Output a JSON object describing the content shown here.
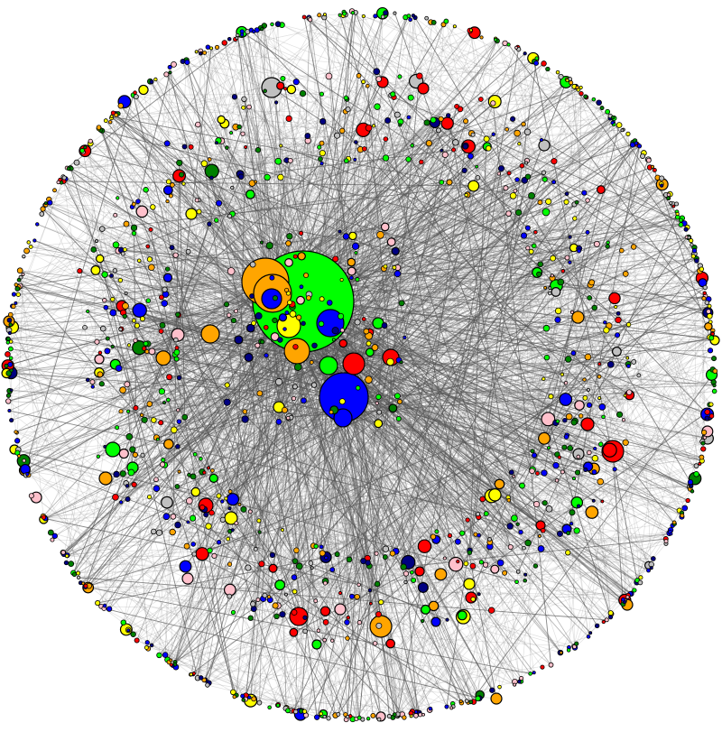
{
  "graph": {
    "type": "network",
    "layout": "circular-force",
    "node_colors": [
      "#00ff00",
      "#0000ff",
      "#ff0000",
      "#ffa500",
      "#ffff00",
      "#ffc0cb",
      "#c0c0c0",
      "#000080",
      "#008000"
    ],
    "node_stroke": "#000000",
    "edge_color": "#555555",
    "background": "#ffffff"
  }
}
